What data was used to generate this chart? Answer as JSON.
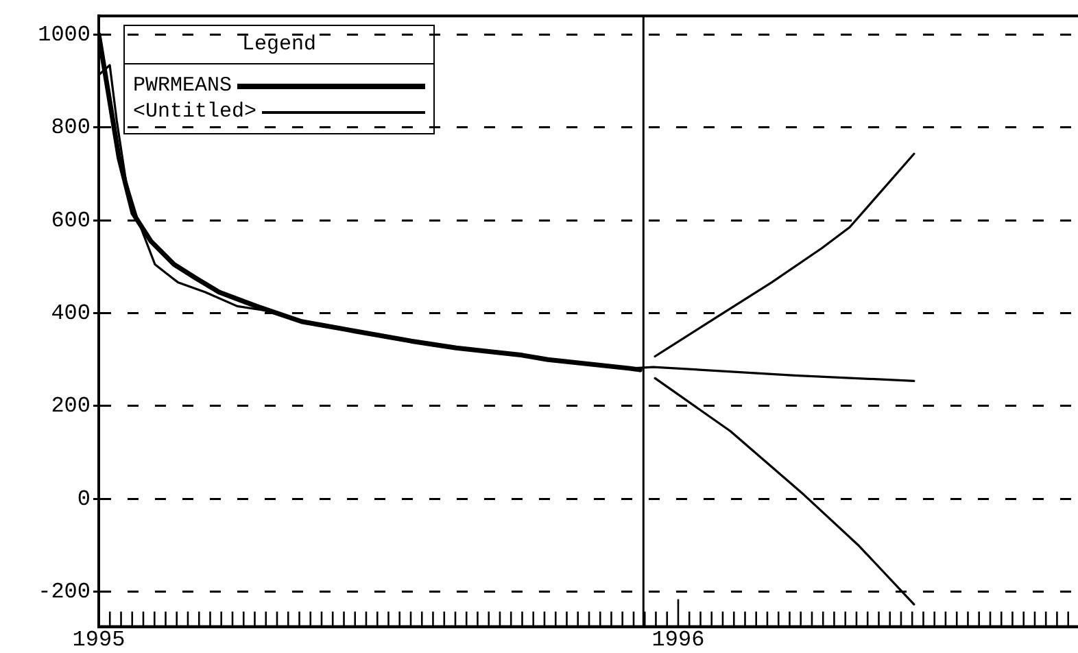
{
  "chart_data": {
    "type": "line",
    "legend_title": "Legend",
    "legend": "top left",
    "grid": "y",
    "line_style": "solid",
    "marker": "none",
    "xlim": [
      1995,
      1996.69
    ],
    "ylim": [
      -275,
      1040
    ],
    "yticks": [
      -200,
      0,
      200,
      400,
      600,
      800,
      1000
    ],
    "xticks": [
      1995,
      {
        "value": 1995.0192,
        "label": null
      },
      {
        "value": 1995.0385,
        "label": null
      },
      {
        "value": 1995.0577,
        "label": null
      },
      {
        "value": 1995.0769,
        "label": null
      },
      {
        "value": 1995.0962,
        "label": null
      },
      {
        "value": 1995.1154,
        "label": null
      },
      {
        "value": 1995.1346,
        "label": null
      },
      {
        "value": 1995.1538,
        "label": null
      },
      {
        "value": 1995.1731,
        "label": null
      },
      {
        "value": 1995.1923,
        "label": null
      },
      {
        "value": 1995.2115,
        "label": null
      },
      {
        "value": 1995.2308,
        "label": null
      },
      {
        "value": 1995.25,
        "label": null
      },
      {
        "value": 1995.2692,
        "label": null
      },
      {
        "value": 1995.2885,
        "label": null
      },
      {
        "value": 1995.3077,
        "label": null
      },
      {
        "value": 1995.3269,
        "label": null
      },
      {
        "value": 1995.3462,
        "label": null
      },
      {
        "value": 1995.3654,
        "label": null
      },
      {
        "value": 1995.3846,
        "label": null
      },
      {
        "value": 1995.4038,
        "label": null
      },
      {
        "value": 1995.4231,
        "label": null
      },
      {
        "value": 1995.4423,
        "label": null
      },
      {
        "value": 1995.4615,
        "label": null
      },
      {
        "value": 1995.4808,
        "label": null
      },
      {
        "value": 1995.5,
        "label": null
      },
      {
        "value": 1995.5192,
        "label": null
      },
      {
        "value": 1995.5385,
        "label": null
      },
      {
        "value": 1995.5577,
        "label": null
      },
      {
        "value": 1995.5769,
        "label": null
      },
      {
        "value": 1995.5962,
        "label": null
      },
      {
        "value": 1995.6154,
        "label": null
      },
      {
        "value": 1995.6346,
        "label": null
      },
      {
        "value": 1995.6538,
        "label": null
      },
      {
        "value": 1995.6731,
        "label": null
      },
      {
        "value": 1995.6923,
        "label": null
      },
      {
        "value": 1995.7115,
        "label": null
      },
      {
        "value": 1995.7308,
        "label": null
      },
      {
        "value": 1995.75,
        "label": null
      },
      {
        "value": 1995.7692,
        "label": null
      },
      {
        "value": 1995.7885,
        "label": null
      },
      {
        "value": 1995.8077,
        "label": null
      },
      {
        "value": 1995.8269,
        "label": null
      },
      {
        "value": 1995.8462,
        "label": null
      },
      {
        "value": 1995.8654,
        "label": null
      },
      {
        "value": 1995.8846,
        "label": null
      },
      {
        "value": 1995.9038,
        "label": null
      },
      {
        "value": 1995.9231,
        "label": null
      },
      {
        "value": 1995.9423,
        "label": null
      },
      {
        "value": 1995.9615,
        "label": null
      },
      {
        "value": 1995.9808,
        "label": null
      },
      1996,
      {
        "value": 1996.0192,
        "label": null
      },
      {
        "value": 1996.0385,
        "label": null
      },
      {
        "value": 1996.0577,
        "label": null
      },
      {
        "value": 1996.0769,
        "label": null
      },
      {
        "value": 1996.0962,
        "label": null
      },
      {
        "value": 1996.1154,
        "label": null
      },
      {
        "value": 1996.1346,
        "label": null
      },
      {
        "value": 1996.1538,
        "label": null
      },
      {
        "value": 1996.1731,
        "label": null
      },
      {
        "value": 1996.1923,
        "label": null
      },
      {
        "value": 1996.2115,
        "label": null
      },
      {
        "value": 1996.2308,
        "label": null
      },
      {
        "value": 1996.25,
        "label": null
      },
      {
        "value": 1996.2692,
        "label": null
      },
      {
        "value": 1996.2885,
        "label": null
      },
      {
        "value": 1996.3077,
        "label": null
      },
      {
        "value": 1996.3269,
        "label": null
      },
      {
        "value": 1996.3462,
        "label": null
      },
      {
        "value": 1996.3654,
        "label": null
      },
      {
        "value": 1996.3846,
        "label": null
      },
      {
        "value": 1996.4038,
        "label": null
      },
      {
        "value": 1996.4231,
        "label": null
      },
      {
        "value": 1996.4423,
        "label": null
      },
      {
        "value": 1996.4615,
        "label": null
      },
      {
        "value": 1996.4808,
        "label": null
      },
      {
        "value": 1996.5,
        "label": null
      },
      {
        "value": 1996.5192,
        "label": null
      },
      {
        "value": 1996.5385,
        "label": null
      },
      {
        "value": 1996.5577,
        "label": null
      },
      {
        "value": 1996.5769,
        "label": null
      },
      {
        "value": 1996.5962,
        "label": null
      },
      {
        "value": 1996.6154,
        "label": null
      },
      {
        "value": 1996.6346,
        "label": null
      },
      {
        "value": 1996.6538,
        "label": null
      },
      {
        "value": 1996.6731,
        "label": null
      }
    ],
    "ref_lines": [
      {
        "axis": "x",
        "value": 1995.94,
        "color": "#000000"
      }
    ],
    "series": [
      {
        "name": "PWRMEANS",
        "color": "#000000",
        "x": [
          1995,
          1995.035,
          1995.059,
          1995.09,
          1995.13,
          1995.168,
          1995.208,
          1995.272,
          1995.35,
          1995.444,
          1995.539,
          1995.617,
          1995.728,
          1995.775,
          1995.917,
          1995.934
        ],
        "values": [
          1000,
          734,
          615,
          555,
          505,
          475,
          445,
          415,
          382,
          361,
          340,
          325,
          310,
          300,
          281,
          278
        ]
      },
      {
        "name": "<Untitled>",
        "color": "#000000",
        "x": [
          1995,
          1995.019,
          1995.031,
          1995.047,
          1995.066,
          1995.097,
          1995.137,
          1995.184,
          1995.239,
          1995.286,
          1995.35,
          1995.444,
          1995.539,
          1995.617,
          1995.775,
          1995.917,
          1995.957,
          1996.201,
          1996.407
        ],
        "values": [
          913,
          934,
          815,
          684,
          606,
          505,
          466,
          445,
          415,
          406,
          382,
          361,
          340,
          325,
          301,
          281,
          284,
          266,
          254
        ]
      },
      {
        "color": "#000000",
        "x": [
          1995.96,
          1996.066,
          1996.161,
          1996.248,
          1996.296,
          1996.407
        ],
        "values": [
          307,
          391,
          466,
          540,
          585,
          743
        ]
      },
      {
        "color": "#000000",
        "x": [
          1995.96,
          1996.09,
          1996.217,
          1996.312,
          1996.407
        ],
        "values": [
          260,
          146,
          9,
          -101,
          -227
        ]
      }
    ]
  }
}
